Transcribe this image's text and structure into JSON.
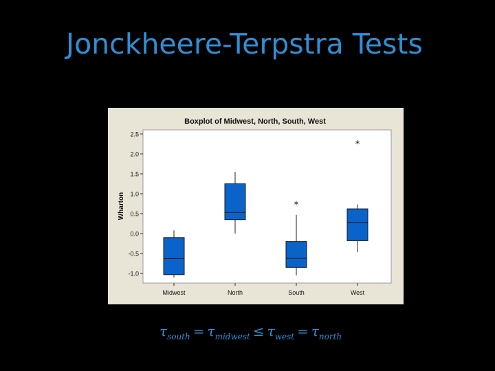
{
  "slide": {
    "title": "Jonckheere-Terpstra Tests"
  },
  "formula": {
    "parts": [
      {
        "sym": "τ",
        "sub": "south"
      },
      {
        "op": "="
      },
      {
        "sym": "τ",
        "sub": "midwest"
      },
      {
        "op": "≤"
      },
      {
        "sym": "τ",
        "sub": "west"
      },
      {
        "op": "="
      },
      {
        "sym": "τ",
        "sub": "north"
      }
    ]
  },
  "colors": {
    "title": "#2e8fd6",
    "box_fill": "#0a63c9",
    "panel_bg": "#e8e4d6",
    "plot_bg": "#ffffff"
  },
  "chart_data": {
    "type": "boxplot",
    "title": "Boxplot of Midwest, North, South, West",
    "xlabel": "",
    "ylabel": "Wharton",
    "ylim": [
      -1.1,
      2.6
    ],
    "yticks": [
      2.5,
      2.0,
      1.5,
      1.0,
      0.5,
      0.0,
      -0.5,
      -1.0
    ],
    "ytick_labels": [
      "2.5",
      "2.0",
      "1.5",
      "1.0",
      "0.5",
      "0.0",
      "-0.5",
      "-1.0"
    ],
    "categories": [
      "Midwest",
      "North",
      "South",
      "West"
    ],
    "boxes": [
      {
        "name": "Midwest",
        "whisker_low": -1.1,
        "q1": -1.03,
        "median": -0.63,
        "q3": -0.1,
        "whisker_high": 0.08,
        "outliers": []
      },
      {
        "name": "North",
        "whisker_low": 0.0,
        "q1": 0.35,
        "median": 0.53,
        "q3": 1.25,
        "whisker_high": 1.55,
        "outliers": []
      },
      {
        "name": "South",
        "whisker_low": -1.05,
        "q1": -0.85,
        "median": -0.62,
        "q3": -0.2,
        "whisker_high": 0.47,
        "outliers": [
          0.75
        ]
      },
      {
        "name": "West",
        "whisker_low": -0.47,
        "q1": -0.18,
        "median": 0.28,
        "q3": 0.62,
        "whisker_high": 0.73,
        "outliers": [
          2.28
        ]
      }
    ],
    "grid": false,
    "legend": "none"
  }
}
